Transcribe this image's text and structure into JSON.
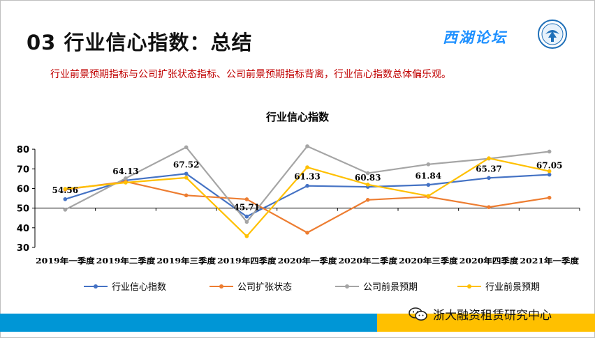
{
  "header": {
    "title": "03 行业信心指数：总结",
    "subtitle": "行业前景预期指标与公司扩张状态指标、公司前景预期指标背离，行业信心指数总体偏乐观。",
    "brand": "西湖论坛"
  },
  "footer": {
    "brand": "浙大融资租赁研究中心",
    "accent_blue": "#0096d6",
    "accent_yellow": "#ffc000"
  },
  "chart_data": {
    "type": "line",
    "title": "行业信心指数",
    "categories": [
      "2019年一季度",
      "2019年二季度",
      "2019年三季度",
      "2019年四季度",
      "2020年一季度",
      "2020年二季度",
      "2020年三季度",
      "2020年四季度",
      "2021年一季度"
    ],
    "ylim": [
      30,
      85
    ],
    "yticks": [
      30,
      40,
      50,
      60,
      70,
      80
    ],
    "grid": false,
    "legend_position": "bottom",
    "series": [
      {
        "name": "行业信心指数",
        "color": "#4472c4",
        "values": [
          54.56,
          64.13,
          67.52,
          45.71,
          61.33,
          60.83,
          61.84,
          65.37,
          67.05
        ],
        "labels": [
          "54.56",
          "64.13",
          "67.52",
          "45.71",
          "61.33",
          "60.83",
          "61.84",
          "65.37",
          "67.05"
        ]
      },
      {
        "name": "公司扩张状态",
        "color": "#ed7d31",
        "values": [
          59.5,
          63.5,
          56.5,
          54.5,
          37.5,
          54.2,
          55.8,
          50.5,
          55.3
        ]
      },
      {
        "name": "公司前景预期",
        "color": "#a5a5a5",
        "values": [
          49.2,
          65.2,
          81.0,
          43.0,
          81.5,
          67.8,
          72.3,
          75.2,
          78.8
        ]
      },
      {
        "name": "行业前景预期",
        "color": "#ffc000",
        "values": [
          59.8,
          63.0,
          65.5,
          35.7,
          70.8,
          62.0,
          56.2,
          75.4,
          68.8
        ]
      }
    ]
  }
}
